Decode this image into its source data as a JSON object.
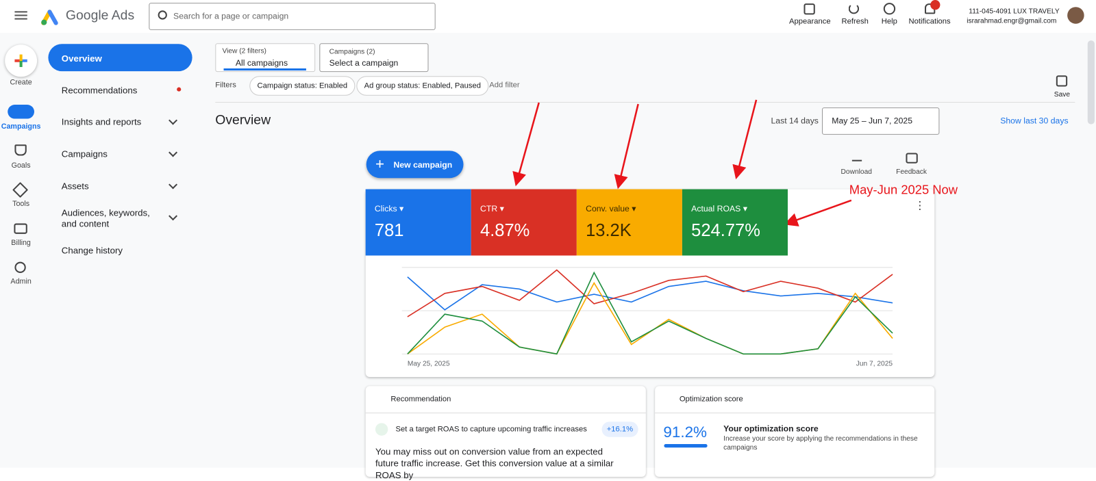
{
  "header": {
    "product": "Google Ads",
    "search_placeholder": "Search for a page or campaign",
    "actions": [
      "Appearance",
      "Refresh",
      "Help",
      "Notifications"
    ],
    "account_id": "111-045-4091 LUX TRAVELY",
    "email": "israrahmad.engr@gmail.com"
  },
  "rail": [
    "Create",
    "Campaigns",
    "Goals",
    "Tools",
    "Billing",
    "Admin"
  ],
  "nav": [
    "Overview",
    "Recommendations",
    "Insights and reports",
    "Campaigns",
    "Assets",
    "Audiences, keywords, and content",
    "Change history"
  ],
  "filters": {
    "view_label": "View (2 filters)",
    "view_value": "All campaigns",
    "campaigns_label": "Campaigns (2)",
    "campaigns_value": "Select a campaign",
    "label": "Filters",
    "chips": [
      "Campaign status: Enabled",
      "Ad group status: Enabled, Paused"
    ],
    "add": "Add filter",
    "save": "Save"
  },
  "page": {
    "title": "Overview",
    "range_label": "Last 14 days",
    "range": "May 25 – Jun 7, 2025",
    "show_last": "Show last 30 days",
    "new_campaign": "New campaign",
    "download": "Download",
    "feedback": "Feedback"
  },
  "chart_data": {
    "type": "line",
    "categories": [
      "May 25, 2025",
      null,
      null,
      null,
      null,
      null,
      null,
      null,
      null,
      null,
      null,
      null,
      null,
      "Jun 7, 2025"
    ],
    "ylim": [
      0,
      100
    ],
    "grid": true,
    "series": [
      {
        "name": "Clicks",
        "summary": "781",
        "color": "#1a73e8",
        "values": [
          89,
          51,
          80,
          75,
          60,
          69,
          60,
          78,
          84,
          73,
          67,
          70,
          66,
          59
        ]
      },
      {
        "name": "CTR",
        "summary": "4.87%",
        "color": "#d93025",
        "values": [
          43,
          70,
          78,
          62,
          97,
          58,
          70,
          85,
          90,
          72,
          84,
          76,
          60,
          92
        ]
      },
      {
        "name": "Conv. value",
        "summary": "13.2K",
        "color": "#f9ab00",
        "values": [
          0,
          31,
          46,
          8,
          0,
          82,
          11,
          40,
          18,
          0,
          0,
          6,
          70,
          18
        ]
      },
      {
        "name": "Actual ROAS",
        "summary": "524.77%",
        "color": "#1e8e3e",
        "values": [
          0,
          46,
          38,
          8,
          0,
          94,
          14,
          38,
          18,
          0,
          0,
          6,
          66,
          24
        ]
      }
    ]
  },
  "annotation": "May-Jun 2025 Now",
  "cards": {
    "recommendation": {
      "title": "Recommendation",
      "item": "Set a target ROAS to capture upcoming traffic increases",
      "badge": "+16.1%",
      "body": "You may miss out on conversion value from an expected future traffic increase. Get this conversion value at a similar ROAS by"
    },
    "optimization": {
      "title": "Optimization score",
      "score": "91.2%",
      "heading": "Your optimization score",
      "text": "Increase your score by applying the recommendations in these campaigns"
    }
  }
}
